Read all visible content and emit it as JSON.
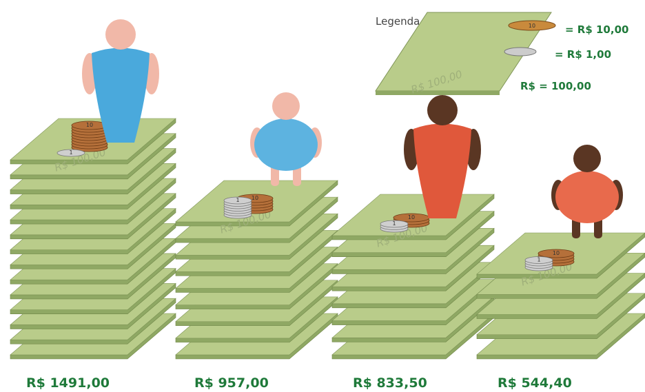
{
  "legend": {
    "title": "Legenda",
    "coin10": "= R$ 10,00",
    "coin1": "= R$ 1,00",
    "note": "R$ = 100,00"
  },
  "note_text": "R$ 100,00",
  "coin10_text": "10",
  "coin1_text": "1",
  "groups": [
    {
      "label": "R$ 1491,00"
    },
    {
      "label": "R$ 957,00"
    },
    {
      "label": "R$ 833,50"
    },
    {
      "label": "R$ 544,40"
    }
  ]
}
